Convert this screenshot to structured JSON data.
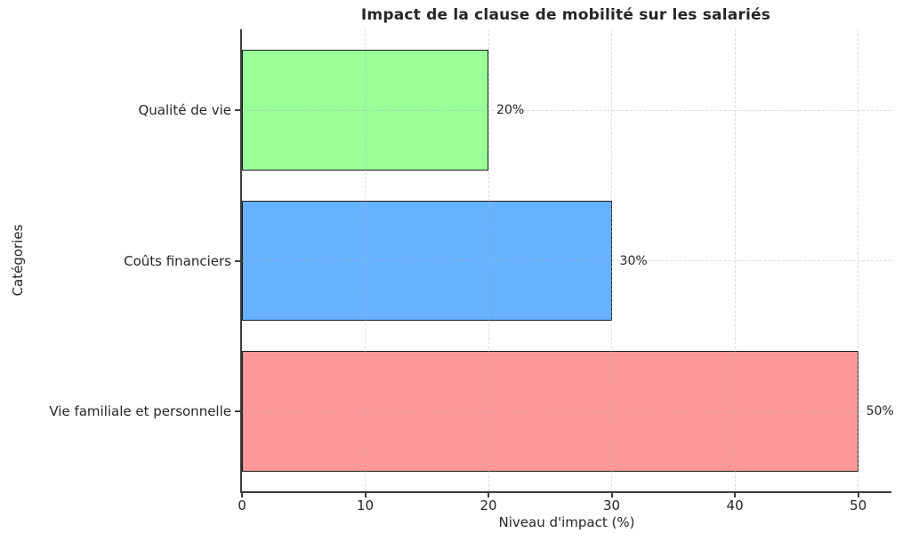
{
  "chart_data": {
    "type": "bar",
    "orientation": "horizontal",
    "title": "Impact de la clause de mobilité sur les salariés",
    "xlabel": "Niveau d'impact (%)",
    "ylabel": "Catégories",
    "categories": [
      "Qualité de vie",
      "Coûts financiers",
      "Vie familiale et personnelle"
    ],
    "values": [
      20,
      30,
      50
    ],
    "bar_labels": [
      "20%",
      "30%",
      "50%"
    ],
    "bar_colors": [
      "#99ff99",
      "#66b2ff",
      "#ff9999"
    ],
    "bar_edge_color": "#1c1c1c",
    "xticks": [
      0,
      10,
      20,
      30,
      40,
      50
    ],
    "xlim": [
      0,
      52.7
    ],
    "grid": true,
    "grid_style": "dashed",
    "grid_color": "#dcdcdc",
    "legend_position": "none",
    "accent_colors": {
      "spine": "#3c3c3c",
      "text": "#262626"
    }
  }
}
